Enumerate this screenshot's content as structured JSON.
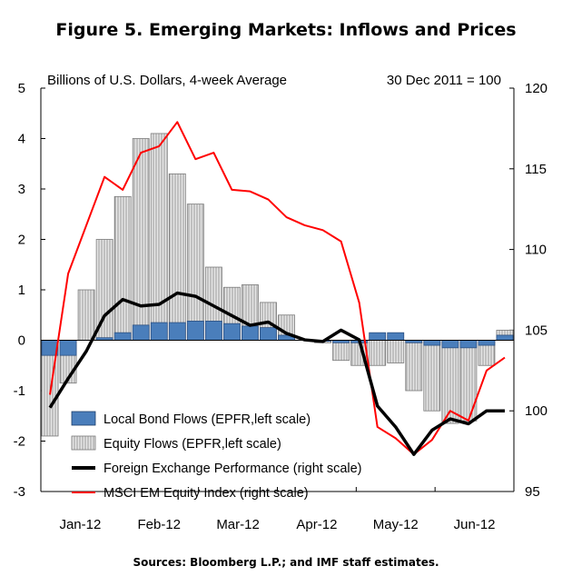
{
  "title": "Figure 5. Emerging Markets: Inflows and Prices",
  "source": "Sources: Bloomberg L.P.; and IMF staff estimates.",
  "chart_data": {
    "type": "bar",
    "left_unit": "Billions of U.S. Dollars, 4-week Average",
    "right_unit": "30 Dec 2011 = 100",
    "ylim_left": [
      -3,
      5
    ],
    "ylim_right": [
      95,
      120
    ],
    "left_ticks": [
      "5",
      "4",
      "3",
      "2",
      "1",
      "0",
      "-1",
      "-2",
      "-3"
    ],
    "right_ticks": [
      "120",
      "115",
      "110",
      "105",
      "100",
      "95"
    ],
    "x_labels": [
      "Jan-12",
      "Feb-12",
      "Mar-12",
      "Apr-12",
      "May-12",
      "Jun-12"
    ],
    "weeks": 26,
    "series": [
      {
        "name": "Local Bond Flows (EPFR,left scale)",
        "kind": "bar",
        "axis": "left",
        "color": "#4a7ebb",
        "values": [
          -0.3,
          -0.3,
          0.0,
          0.05,
          0.15,
          0.3,
          0.35,
          0.35,
          0.38,
          0.38,
          0.33,
          0.28,
          0.25,
          0.1,
          0.0,
          -0.02,
          -0.05,
          -0.05,
          0.15,
          0.15,
          -0.05,
          -0.1,
          -0.15,
          -0.15,
          -0.1,
          0.1
        ]
      },
      {
        "name": "Equity Flows (EPFR,left scale)",
        "kind": "bar",
        "axis": "left",
        "color": "#c8c8c8",
        "values": [
          -1.9,
          -0.85,
          1.0,
          2.0,
          2.85,
          4.0,
          4.1,
          3.3,
          2.7,
          1.45,
          1.05,
          1.1,
          0.75,
          0.5,
          0.0,
          -0.05,
          -0.4,
          -0.5,
          -0.5,
          -0.45,
          -1.0,
          -1.4,
          -1.65,
          -1.6,
          -0.5,
          0.2
        ]
      },
      {
        "name": "Foreign Exchange Performance (right scale)",
        "kind": "line",
        "axis": "right",
        "color": "#000000",
        "values": [
          100.2,
          102.0,
          103.7,
          105.9,
          106.9,
          106.5,
          106.6,
          107.3,
          107.1,
          106.5,
          105.9,
          105.3,
          105.5,
          104.8,
          104.4,
          104.3,
          105.0,
          104.4,
          100.3,
          99.0,
          97.3,
          98.8,
          99.5,
          99.2,
          100.0,
          100.0
        ]
      },
      {
        "name": "MSCI EM Equity Index (right scale)",
        "kind": "line",
        "axis": "right",
        "color": "#ff0000",
        "values": [
          101.0,
          108.5,
          111.5,
          114.5,
          113.7,
          116.0,
          116.4,
          117.9,
          115.6,
          116.0,
          113.7,
          113.6,
          113.1,
          112.0,
          111.5,
          111.2,
          110.5,
          106.7,
          99.0,
          98.3,
          97.3,
          98.2,
          100.0,
          99.4,
          102.5,
          103.3
        ]
      }
    ]
  }
}
